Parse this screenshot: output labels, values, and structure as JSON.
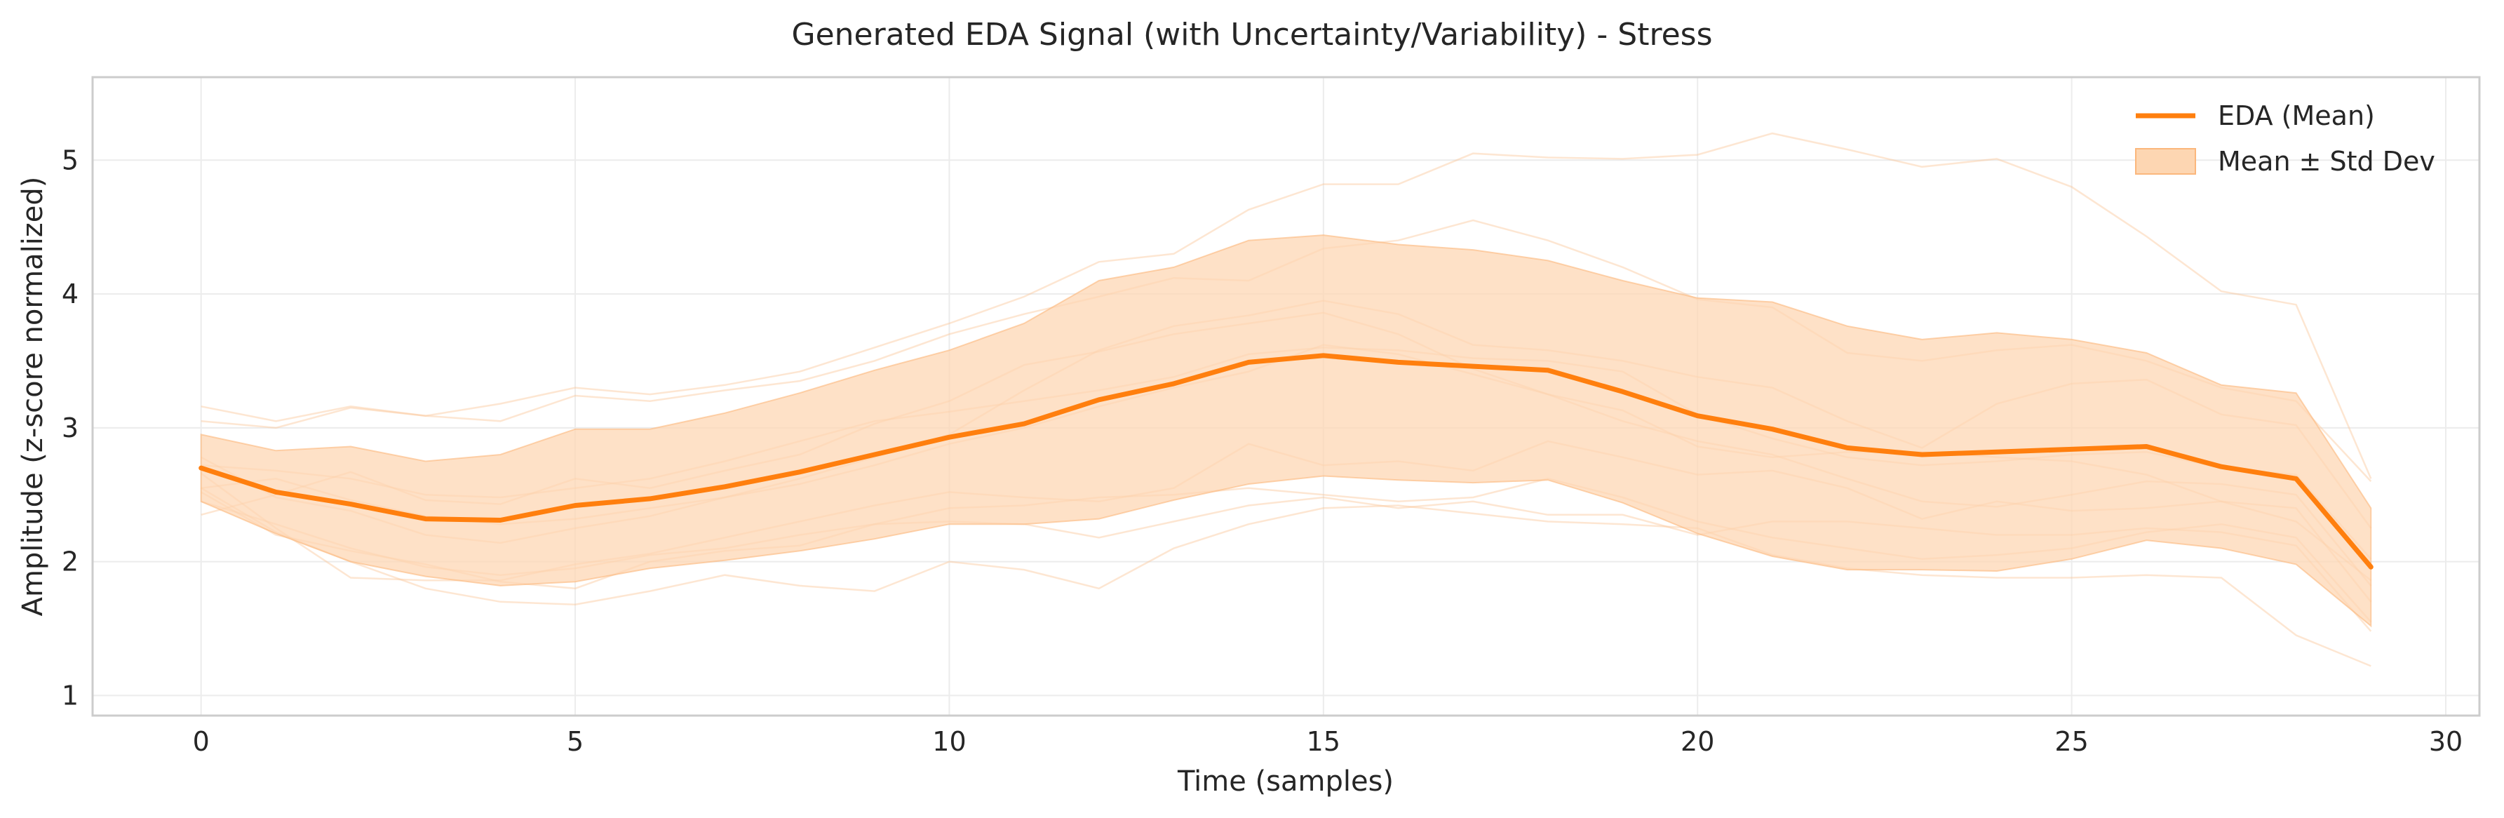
{
  "colors": {
    "mean_line": "#ff7f0e",
    "band_fill": "#fdd6b2",
    "band_edge": "#fbb77c",
    "sample_line": "#fbc79c",
    "grid": "#ececec",
    "frame": "#cccccc"
  },
  "chart_data": {
    "type": "line",
    "title": "Generated EDA Signal (with Uncertainty/Variability) - Stress",
    "xlabel": "Time (samples)",
    "ylabel": "Amplitude (z-score normalized)",
    "xlim": [
      -1.45,
      30.45
    ],
    "ylim": [
      0.85,
      5.62
    ],
    "xticks": [
      0,
      5,
      10,
      15,
      20,
      25,
      30
    ],
    "yticks": [
      1,
      2,
      3,
      4,
      5
    ],
    "grid": true,
    "legend_position": "top-right",
    "legend": [
      "EDA (Mean)",
      "Mean ± Std Dev"
    ],
    "x": [
      0,
      1,
      2,
      3,
      4,
      5,
      6,
      7,
      8,
      9,
      10,
      11,
      12,
      13,
      14,
      15,
      16,
      17,
      18,
      19,
      20,
      21,
      22,
      23,
      24,
      25,
      26,
      27,
      28,
      29
    ],
    "series": [
      {
        "name": "EDA (Mean)",
        "values": [
          2.7,
          2.52,
          2.43,
          2.32,
          2.31,
          2.42,
          2.47,
          2.56,
          2.67,
          2.8,
          2.93,
          3.03,
          3.21,
          3.33,
          3.49,
          3.54,
          3.49,
          3.46,
          3.43,
          3.27,
          3.09,
          2.99,
          2.85,
          2.8,
          2.82,
          2.84,
          2.86,
          2.71,
          2.62,
          1.96
        ]
      },
      {
        "name": "Mean ± Std Dev",
        "upper": [
          2.95,
          2.83,
          2.86,
          2.75,
          2.8,
          2.99,
          2.99,
          3.11,
          3.26,
          3.43,
          3.58,
          3.78,
          4.1,
          4.2,
          4.4,
          4.44,
          4.37,
          4.33,
          4.25,
          4.1,
          3.97,
          3.94,
          3.76,
          3.66,
          3.71,
          3.66,
          3.56,
          3.32,
          3.26,
          2.4
        ],
        "lower": [
          2.45,
          2.21,
          2.0,
          1.89,
          1.82,
          1.85,
          1.95,
          2.01,
          2.08,
          2.17,
          2.28,
          2.28,
          2.32,
          2.46,
          2.58,
          2.64,
          2.61,
          2.59,
          2.61,
          2.44,
          2.21,
          2.04,
          1.94,
          1.94,
          1.93,
          2.02,
          2.16,
          2.1,
          1.98,
          1.52
        ]
      }
    ],
    "samples": [
      [
        2.35,
        2.5,
        2.67,
        2.46,
        2.43,
        2.62,
        2.55,
        2.68,
        2.8,
        3.03,
        3.2,
        3.47,
        3.57,
        3.7,
        3.78,
        3.86,
        3.7,
        3.44,
        3.25,
        3.13,
        2.86,
        2.78,
        2.82,
        2.82,
        2.78,
        2.75,
        2.65,
        2.45,
        2.3,
        1.86
      ],
      [
        3.05,
        3.0,
        3.15,
        3.09,
        3.18,
        3.3,
        3.25,
        3.32,
        3.42,
        3.6,
        3.78,
        3.98,
        4.24,
        4.3,
        4.63,
        4.82,
        4.82,
        5.05,
        5.02,
        5.01,
        5.04,
        5.2,
        5.08,
        4.95,
        5.01,
        4.8,
        4.43,
        4.02,
        3.92,
        2.62
      ],
      [
        2.55,
        2.62,
        2.46,
        2.34,
        2.28,
        2.32,
        2.4,
        2.48,
        2.58,
        2.72,
        2.88,
        3.0,
        3.16,
        3.3,
        3.42,
        3.62,
        3.55,
        3.4,
        3.25,
        3.05,
        2.9,
        2.8,
        2.62,
        2.45,
        2.41,
        2.5,
        2.6,
        2.58,
        2.5,
        1.82
      ],
      [
        2.78,
        2.48,
        2.38,
        2.2,
        2.14,
        2.25,
        2.34,
        2.48,
        2.62,
        2.78,
        2.95,
        3.28,
        3.58,
        3.76,
        3.84,
        3.95,
        3.85,
        3.62,
        3.58,
        3.5,
        3.38,
        3.3,
        3.05,
        2.85,
        3.18,
        3.33,
        3.36,
        3.1,
        3.02,
        2.25
      ],
      [
        2.66,
        2.25,
        1.88,
        1.86,
        1.86,
        1.98,
        2.06,
        2.18,
        2.3,
        2.42,
        2.52,
        2.48,
        2.45,
        2.55,
        2.88,
        2.72,
        2.75,
        2.68,
        2.9,
        2.78,
        2.65,
        2.68,
        2.55,
        2.32,
        2.45,
        2.38,
        2.4,
        2.45,
        2.4,
        1.7
      ],
      [
        2.52,
        2.2,
        2.08,
        1.98,
        1.85,
        1.8,
        2.0,
        2.08,
        2.12,
        2.28,
        2.4,
        2.42,
        2.48,
        2.5,
        2.55,
        2.5,
        2.45,
        2.48,
        2.62,
        2.48,
        2.3,
        2.18,
        2.1,
        2.02,
        2.05,
        2.1,
        2.22,
        2.28,
        2.18,
        1.55
      ],
      [
        2.45,
        2.28,
        2.1,
        1.96,
        1.9,
        1.95,
        2.05,
        2.1,
        2.2,
        2.28,
        2.3,
        2.28,
        2.18,
        2.3,
        2.42,
        2.48,
        2.4,
        2.45,
        2.35,
        2.35,
        2.2,
        2.3,
        2.3,
        2.25,
        2.2,
        2.2,
        2.25,
        2.22,
        2.12,
        1.48
      ],
      [
        2.55,
        2.22,
        2.0,
        1.8,
        1.7,
        1.68,
        1.78,
        1.9,
        1.82,
        1.78,
        2.0,
        1.94,
        1.8,
        2.1,
        2.28,
        2.4,
        2.42,
        2.36,
        2.3,
        2.28,
        2.25,
        2.05,
        1.95,
        1.9,
        1.88,
        1.88,
        1.9,
        1.88,
        1.45,
        1.22
      ],
      [
        3.16,
        3.05,
        3.16,
        3.09,
        3.05,
        3.24,
        3.2,
        3.28,
        3.35,
        3.5,
        3.7,
        3.85,
        3.98,
        4.12,
        4.1,
        4.34,
        4.4,
        4.55,
        4.4,
        4.2,
        3.96,
        3.9,
        3.56,
        3.5,
        3.58,
        3.62,
        3.5,
        3.3,
        3.2,
        2.6
      ],
      [
        2.72,
        2.68,
        2.62,
        2.5,
        2.48,
        2.55,
        2.62,
        2.75,
        2.9,
        3.05,
        3.12,
        3.2,
        3.28,
        3.38,
        3.55,
        3.6,
        3.58,
        3.52,
        3.5,
        3.42,
        3.1,
        2.92,
        2.78,
        2.72,
        2.75,
        2.8,
        2.82,
        2.7,
        2.65,
        2.02
      ]
    ]
  }
}
